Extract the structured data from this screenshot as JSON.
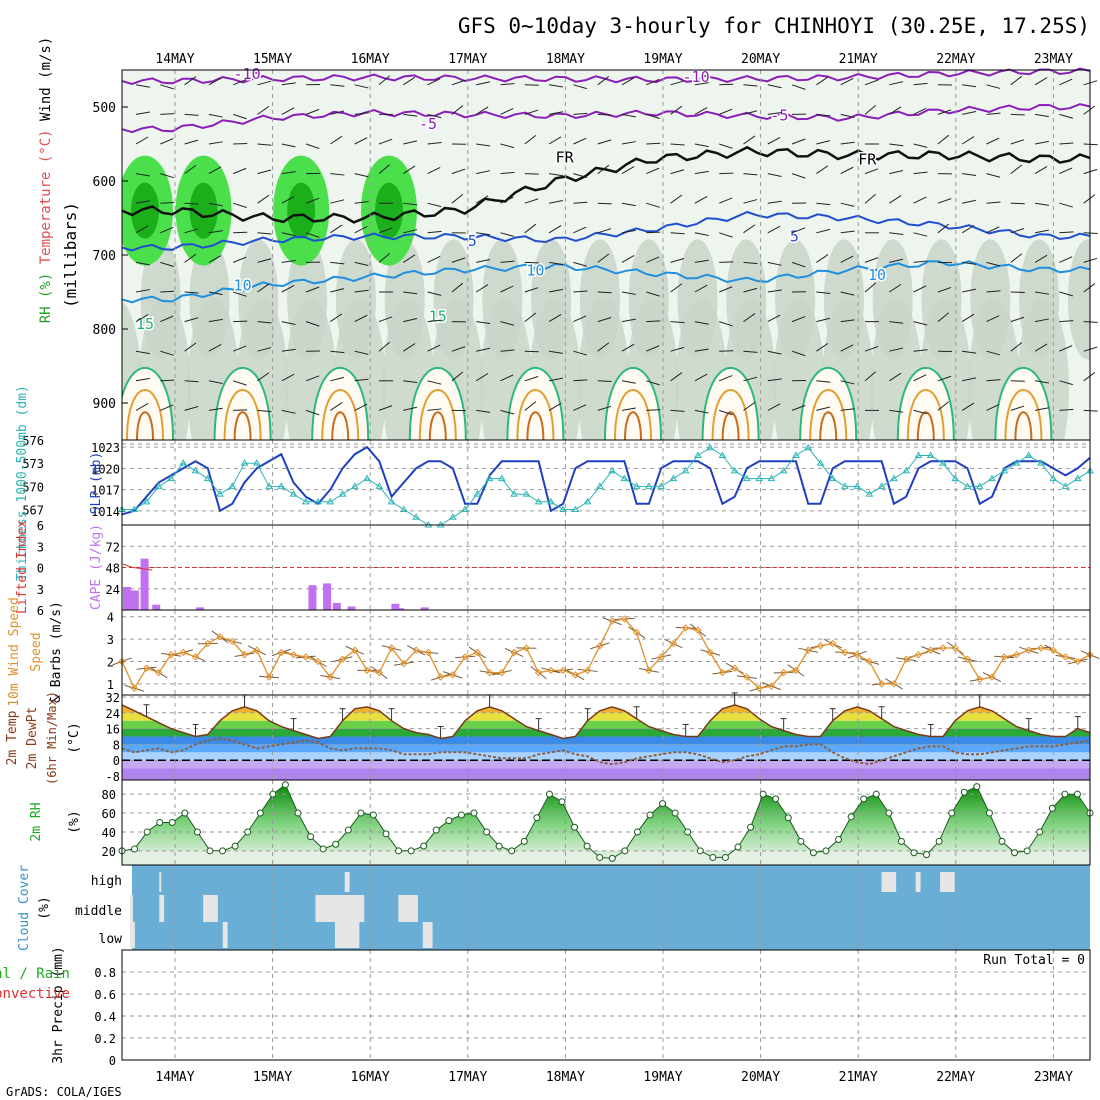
{
  "title": "GFS 0~10day 3-hourly for CHINHOYI (30.25E, 17.25S)",
  "footer": "GrADS: COLA/IGES",
  "colors": {
    "grid": "#999999",
    "slp": "#1f3fbf",
    "thickness": "#2bb5b5",
    "cape": "#c070f0",
    "lifted_index": "#e03030",
    "wind": "#e0902a",
    "barb": "#7a5a3a",
    "rh_green": "#1faa1f",
    "cloud_bg": "#6aaed6",
    "cloud_clear": "#e6e6e6",
    "temp_line": "#7a3a1a",
    "dewpt_line": "#8a6040"
  },
  "chart_data": [
    {
      "panel": "upper_air",
      "type": "heatmap",
      "x_ticks": [
        "14MAY",
        "15MAY",
        "16MAY",
        "17MAY",
        "18MAY",
        "19MAY",
        "20MAY",
        "21MAY",
        "22MAY",
        "23MAY"
      ],
      "y_ticks": [
        500,
        600,
        700,
        800,
        900
      ],
      "ylim": [
        450,
        950
      ],
      "ylabel_parts": [
        "RH (%)",
        "Temperature (°C)",
        "Wind (m/s)"
      ],
      "ylabel_units": "(millibars)",
      "contour_labels": [
        "-10",
        "-10",
        "-5",
        "-5",
        "FR",
        "FR",
        "5",
        "5",
        "10",
        "10",
        "10",
        "15",
        "15"
      ],
      "contours": [
        {
          "label": "-10",
          "pressure_at_days": [
            465,
            462,
            460,
            461,
            462,
            463,
            462,
            460,
            455,
            452
          ]
        },
        {
          "label": "-5",
          "pressure_at_days": [
            530,
            515,
            508,
            510,
            512,
            508,
            512,
            515,
            505,
            500
          ]
        },
        {
          "label": "FR",
          "pressure_at_days": [
            640,
            650,
            650,
            640,
            600,
            570,
            560,
            565,
            565,
            570
          ]
        },
        {
          "label": "5",
          "pressure_at_days": [
            690,
            680,
            675,
            675,
            680,
            665,
            645,
            650,
            660,
            675
          ]
        },
        {
          "label": "10",
          "pressure_at_days": [
            760,
            740,
            730,
            720,
            715,
            725,
            735,
            720,
            710,
            720
          ]
        }
      ]
    },
    {
      "panel": "slp_thickness",
      "type": "line",
      "series": [
        {
          "name": "SLP (mb)",
          "ylim": [
            1012,
            1024
          ],
          "ticks": [
            1014,
            1017,
            1020,
            1023
          ],
          "values": [
            1013.5,
            1014,
            1016,
            1018,
            1019,
            1020,
            1021,
            1020,
            1014,
            1015,
            1018,
            1020,
            1021,
            1022,
            1018,
            1016,
            1015,
            1017,
            1020,
            1022,
            1023,
            1021,
            1016,
            1018,
            1020,
            1021,
            1021,
            1020,
            1015,
            1015,
            1019,
            1021,
            1021,
            1021,
            1021,
            1014,
            1015,
            1020,
            1021,
            1021,
            1021,
            1021,
            1015,
            1015,
            1020,
            1021,
            1021,
            1021,
            1020,
            1015,
            1016,
            1020,
            1021,
            1021,
            1021,
            1021,
            1015,
            1015,
            1020,
            1021,
            1021,
            1021,
            1021,
            1015,
            1016,
            1020,
            1021,
            1021,
            1021,
            1020,
            1015,
            1016,
            1020,
            1021,
            1021,
            1021,
            1020,
            1019,
            1020,
            1021.5
          ]
        },
        {
          "name": "Thickness 1000-500mb (dm)",
          "ylim": [
            565,
            576
          ],
          "ticks": [
            567,
            570,
            573,
            576
          ],
          "values": [
            567,
            567,
            568,
            570,
            571,
            573,
            572,
            571,
            569,
            570,
            573,
            573,
            570,
            570,
            569,
            568,
            568,
            568,
            569,
            570,
            571,
            570,
            568,
            567,
            566,
            565,
            565,
            566,
            567,
            569,
            571,
            571,
            569,
            569,
            568,
            568,
            567,
            567,
            568,
            570,
            572,
            571,
            570,
            570,
            570,
            571,
            572,
            574,
            575,
            574,
            572,
            571,
            571,
            571,
            572,
            574,
            575,
            573,
            571,
            570,
            570,
            569,
            570,
            571,
            572,
            574,
            574,
            573,
            571,
            570,
            570,
            571,
            572,
            573,
            574,
            573,
            571,
            570,
            571,
            572
          ]
        }
      ]
    },
    {
      "panel": "cape_li",
      "type": "bar",
      "series": [
        {
          "name": "CAPE (J/kg)",
          "ylim": [
            0,
            96
          ],
          "ticks": [
            24,
            48,
            72
          ],
          "bars": [
            [
              0.0,
              26
            ],
            [
              0.08,
              22
            ],
            [
              0.18,
              58
            ],
            [
              0.3,
              6
            ],
            [
              0.75,
              3
            ],
            [
              1.9,
              28
            ],
            [
              2.05,
              30
            ],
            [
              2.15,
              8
            ],
            [
              2.3,
              4
            ],
            [
              2.75,
              7
            ],
            [
              2.8,
              2
            ],
            [
              3.05,
              3
            ]
          ]
        },
        {
          "name": "Lifted Index",
          "ticks": [
            -6,
            -3,
            0,
            3,
            6
          ]
        }
      ]
    },
    {
      "panel": "wind10m",
      "type": "line",
      "series": [
        {
          "name": "10m Wind Speed",
          "ylim": [
            0.5,
            4.3
          ],
          "ticks": [
            1,
            2,
            3,
            4
          ],
          "values": [
            2.0,
            0.8,
            1.7,
            1.5,
            2.3,
            2.4,
            2.2,
            2.8,
            3.1,
            2.9,
            2.3,
            2.5,
            1.3,
            2.4,
            2.3,
            2.2,
            2.0,
            1.3,
            2.1,
            2.5,
            1.6,
            1.5,
            2.6,
            1.9,
            2.5,
            2.4,
            1.3,
            1.4,
            2.2,
            2.4,
            1.5,
            1.5,
            2.4,
            2.6,
            1.5,
            1.6,
            1.6,
            1.4,
            1.6,
            2.7,
            3.8,
            3.9,
            3.3,
            1.6,
            2.2,
            2.8,
            3.5,
            3.4,
            2.4,
            1.5,
            1.7,
            1.3,
            0.8,
            0.9,
            1.5,
            1.6,
            2.5,
            2.7,
            2.8,
            2.4,
            2.3,
            2.0,
            1.0,
            1.0,
            2.1,
            2.3,
            2.5,
            2.6,
            2.6,
            2.1,
            1.2,
            1.3,
            2.2,
            2.3,
            2.5,
            2.6,
            2.5,
            2.2,
            2.0,
            2.3
          ]
        }
      ],
      "ylabel_parts": [
        "10m Wind Speed",
        "& Barbs",
        "(m/s)"
      ]
    },
    {
      "panel": "temp2m",
      "type": "area",
      "ylim": [
        -10,
        33
      ],
      "ticks": [
        -8,
        0,
        8,
        16,
        24,
        32
      ],
      "ylabel_parts": [
        "2m Temp",
        "2m DewPt",
        "(6hr Min/Max)",
        "(°C)"
      ],
      "series": [
        {
          "name": "2m Temp",
          "values": [
            28,
            25,
            22,
            19,
            16,
            14,
            12,
            13,
            20,
            25,
            27,
            25,
            20,
            17,
            15,
            13,
            11,
            12,
            20,
            26,
            27,
            25,
            20,
            16,
            14,
            13,
            11,
            12,
            20,
            25,
            27,
            25,
            21,
            17,
            15,
            13,
            11,
            12,
            20,
            25,
            27,
            25,
            21,
            17,
            15,
            13,
            12,
            12,
            20,
            26,
            28,
            26,
            21,
            17,
            15,
            13,
            12,
            12,
            20,
            25,
            27,
            25,
            21,
            17,
            15,
            13,
            12,
            12,
            20,
            25,
            27,
            25,
            21,
            17,
            15,
            13,
            12,
            12,
            16,
            14
          ]
        },
        {
          "name": "2m DewPt",
          "values": [
            6,
            4,
            5,
            6,
            4,
            5,
            8,
            10,
            11,
            10,
            8,
            6,
            7,
            8,
            9,
            10,
            9,
            6,
            5,
            6,
            6,
            6,
            5,
            3,
            3,
            3,
            4,
            4,
            4,
            3,
            2,
            1,
            1,
            1,
            3,
            4,
            5,
            3,
            2,
            -1,
            -2,
            -1,
            1,
            2,
            3,
            4,
            4,
            3,
            1,
            -1,
            0,
            2,
            3,
            5,
            7,
            7,
            8,
            8,
            4,
            1,
            -1,
            -2,
            0,
            2,
            4,
            6,
            7,
            7,
            4,
            3,
            3,
            4,
            5,
            6,
            7,
            7,
            7,
            8,
            9,
            10
          ]
        }
      ]
    },
    {
      "panel": "rh2m",
      "type": "area",
      "ylim": [
        5,
        95
      ],
      "ticks": [
        20,
        40,
        60,
        80
      ],
      "ylabel_parts": [
        "2m RH",
        "(%)"
      ],
      "series": [
        {
          "name": "2m RH",
          "values": [
            20,
            22,
            40,
            50,
            50,
            60,
            40,
            20,
            20,
            25,
            40,
            60,
            80,
            90,
            60,
            35,
            22,
            27,
            42,
            60,
            58,
            38,
            20,
            20,
            25,
            42,
            52,
            58,
            60,
            40,
            25,
            20,
            30,
            55,
            80,
            72,
            45,
            25,
            13,
            12,
            20,
            40,
            58,
            70,
            60,
            40,
            20,
            13,
            13,
            24,
            45,
            80,
            75,
            55,
            30,
            18,
            20,
            32,
            56,
            75,
            80,
            60,
            30,
            18,
            16,
            30,
            60,
            82,
            88,
            60,
            30,
            18,
            20,
            40,
            65,
            80,
            80,
            60
          ]
        }
      ]
    },
    {
      "panel": "cloud_cover",
      "type": "heatmap",
      "ylabel_parts": [
        "Cloud Cover",
        "(%)"
      ],
      "y_ticks": [
        "high",
        "middle",
        "low"
      ]
    },
    {
      "panel": "precip",
      "type": "bar",
      "ylim": [
        0,
        1
      ],
      "ticks": [
        0,
        0.2,
        0.4,
        0.6,
        0.8
      ],
      "tick_labels": [
        "0",
        "0.2",
        "0.4",
        "0.6",
        "0.8"
      ],
      "ylabel_parts": [
        "3hr Precip (mm)",
        "Total / Rain",
        "Convective"
      ],
      "annotation": "Run Total = 0"
    }
  ]
}
